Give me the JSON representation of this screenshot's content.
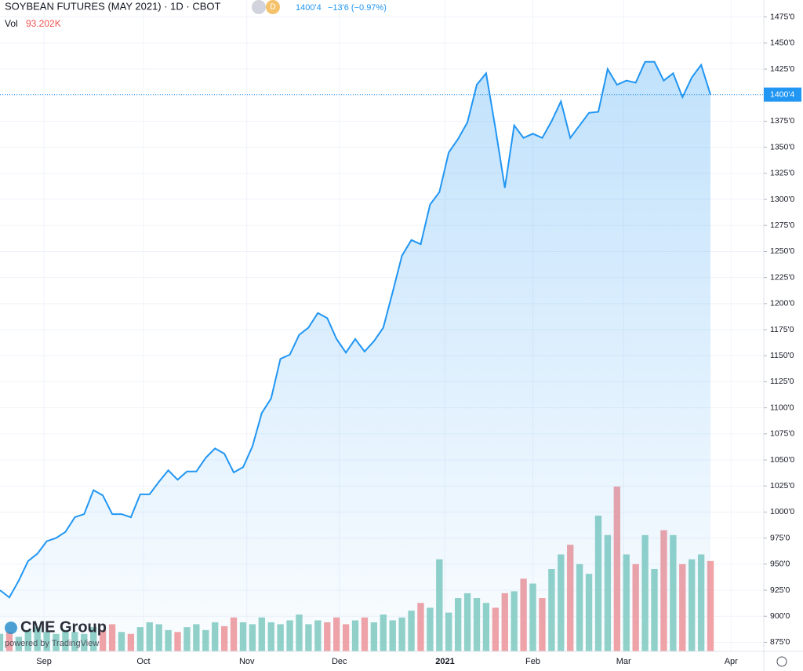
{
  "chart_data": {
    "type": "area",
    "title": "SOYBEAN FUTURES (MAY 2021) · 1D · CBOT",
    "badge": "D",
    "last_price_text": "1400'4",
    "change_text": "−13'6 (−0.97%)",
    "last_price": {
      "value": 1400.5,
      "label": "1400'4"
    },
    "series": [
      {
        "name": "Price",
        "color": "#2196f3",
        "values": [
          925,
          918,
          934,
          953,
          960,
          972,
          975,
          981,
          995,
          998,
          1021,
          1016,
          998,
          998,
          995,
          1017,
          1017,
          1029,
          1040,
          1031,
          1039,
          1039,
          1052,
          1061,
          1056,
          1038,
          1043,
          1063,
          1095,
          1109,
          1147,
          1151,
          1170,
          1177,
          1191,
          1186,
          1166,
          1153,
          1166,
          1154,
          1164,
          1177,
          1211,
          1246,
          1261,
          1257,
          1295,
          1307,
          1345,
          1358,
          1374,
          1410,
          1421,
          1368,
          1311,
          1371,
          1359,
          1363,
          1359,
          1375,
          1394,
          1359,
          1371,
          1383,
          1384,
          1425,
          1410,
          1414,
          1412,
          1432,
          1432,
          1414,
          1421,
          1398,
          1417,
          1429,
          1400.5
        ]
      }
    ],
    "volume": {
      "name": "Vol",
      "value_label": "93.202K",
      "up_color": "#93d2c8",
      "down_color": "#f3a3a6",
      "values": [
        18,
        20,
        15,
        22,
        25,
        20,
        18,
        22,
        20,
        18,
        25,
        22,
        28,
        20,
        18,
        25,
        30,
        28,
        22,
        20,
        25,
        28,
        22,
        30,
        26,
        35,
        30,
        28,
        35,
        30,
        28,
        32,
        38,
        28,
        32,
        30,
        35,
        28,
        32,
        35,
        30,
        38,
        32,
        35,
        42,
        50,
        45,
        95,
        40,
        55,
        60,
        55,
        50,
        45,
        60,
        62,
        75,
        70,
        55,
        85,
        100,
        110,
        90,
        80,
        140,
        120,
        170,
        100,
        90,
        120,
        85,
        125,
        120,
        90,
        95,
        100,
        93.2
      ]
    },
    "xlim": [
      0,
      81.7
    ],
    "xticks": [
      {
        "value": 4.7,
        "label": "Sep"
      },
      {
        "value": 15.35,
        "label": "Oct"
      },
      {
        "value": 26.4,
        "label": "Nov"
      },
      {
        "value": 36.3,
        "label": "Dec"
      },
      {
        "value": 47.6,
        "label": "2021"
      },
      {
        "value": 57.0,
        "label": "Feb"
      },
      {
        "value": 66.7,
        "label": "Mar"
      },
      {
        "value": 78.2,
        "label": "Apr"
      }
    ],
    "ylim": [
      866.3,
      1491.3
    ],
    "yticks": [
      {
        "value": 875,
        "label": "875'0"
      },
      {
        "value": 900,
        "label": "900'0"
      },
      {
        "value": 925,
        "label": "925'0"
      },
      {
        "value": 950,
        "label": "950'0"
      },
      {
        "value": 975,
        "label": "975'0"
      },
      {
        "value": 1000,
        "label": "1000'0"
      },
      {
        "value": 1025,
        "label": "1025'0"
      },
      {
        "value": 1050,
        "label": "1050'0"
      },
      {
        "value": 1075,
        "label": "1075'0"
      },
      {
        "value": 1100,
        "label": "1100'0"
      },
      {
        "value": 1125,
        "label": "1125'0"
      },
      {
        "value": 1150,
        "label": "1150'0"
      },
      {
        "value": 1175,
        "label": "1175'0"
      },
      {
        "value": 1200,
        "label": "1200'0"
      },
      {
        "value": 1225,
        "label": "1225'0"
      },
      {
        "value": 1250,
        "label": "1250'0"
      },
      {
        "value": 1275,
        "label": "1275'0"
      },
      {
        "value": 1300,
        "label": "1300'0"
      },
      {
        "value": 1325,
        "label": "1325'0"
      },
      {
        "value": 1350,
        "label": "1350'0"
      },
      {
        "value": 1375,
        "label": "1375'0"
      },
      {
        "value": 1400,
        "label": "1400'0"
      },
      {
        "value": 1425,
        "label": "1425'0"
      },
      {
        "value": 1450,
        "label": "1450'0"
      },
      {
        "value": 1475,
        "label": "1475'0"
      }
    ],
    "grid": true,
    "logo": "CME Group",
    "powered_by": "powered by TradingView"
  }
}
